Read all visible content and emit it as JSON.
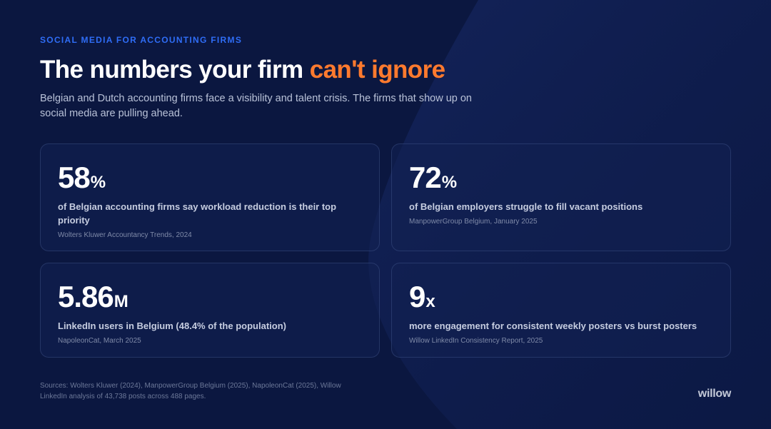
{
  "header": {
    "eyebrow": "SOCIAL MEDIA FOR ACCOUNTING FIRMS",
    "title_main": "The numbers your firm ",
    "title_accent": "can't ignore",
    "subtitle": "Belgian and Dutch accounting firms face a visibility and talent crisis. The firms that show up on social media are pulling ahead."
  },
  "stats": [
    {
      "value": "58",
      "unit": "%",
      "description": "of Belgian accounting firms say workload reduction is their top priority",
      "source": "Wolters Kluwer Accountancy Trends, 2024"
    },
    {
      "value": "72",
      "unit": "%",
      "description": "of Belgian employers struggle to fill vacant positions",
      "source": "ManpowerGroup Belgium, January 2025"
    },
    {
      "value": "5.86",
      "unit": "M",
      "description": "LinkedIn users in Belgium (48.4% of the population)",
      "source": "NapoleonCat, March 2025"
    },
    {
      "value": "9",
      "unit": "x",
      "description": "more engagement for consistent weekly posters vs burst posters",
      "source": "Willow LinkedIn Consistency Report, 2025"
    }
  ],
  "footer": {
    "sources": "Sources: Wolters Kluwer (2024), ManpowerGroup Belgium (2025), NapoleonCat (2025), Willow LinkedIn analysis of 43,738 posts across 488 pages.",
    "logo_text": "willow"
  },
  "colors": {
    "background": "#0b1740",
    "accent_orange": "#ff7a2e",
    "accent_blue": "#2f6df6"
  }
}
